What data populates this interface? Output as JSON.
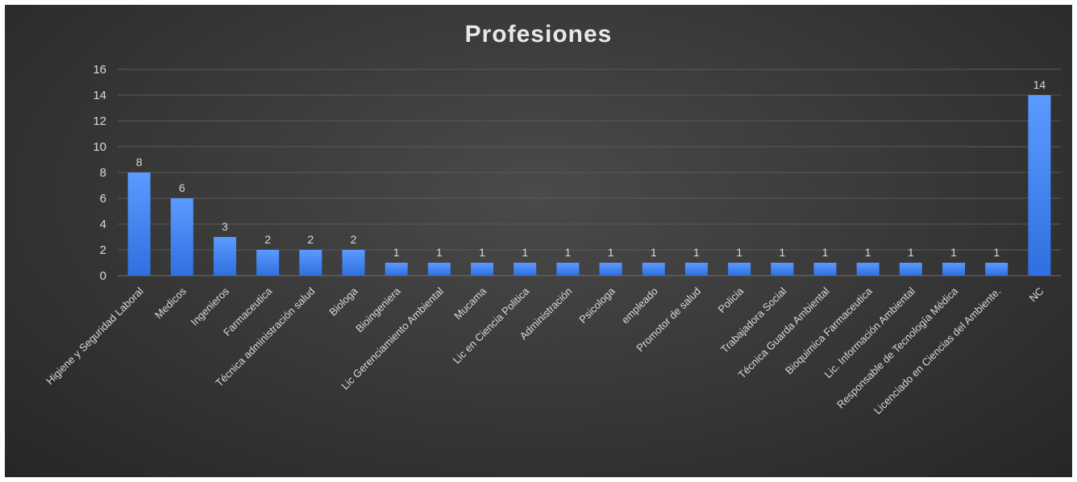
{
  "chart_data": {
    "type": "bar",
    "title": "Profesiones",
    "xlabel": "",
    "ylabel": "",
    "ylim": [
      0,
      16
    ],
    "yticks": [
      0,
      2,
      4,
      6,
      8,
      10,
      12,
      14,
      16
    ],
    "grid": true,
    "legend": "none",
    "colors": {
      "bar_top": "#5b9bff",
      "bar_bottom": "#2f6fe0",
      "background": "#3a3a3a"
    },
    "categories": [
      "Higiene y Seguridad Laboral",
      "Medicos",
      "Ingenieros",
      "Farmaceutica",
      "Técnica administración salud",
      "Biologa",
      "Bioingeniera",
      "Lic Gerenciamiento Ambiental",
      "Mucama",
      "Lic en Ciencia Politica",
      "Administración",
      "Psicologa",
      "empleado",
      "Promotor de salud",
      "Policia",
      "Trabajadora Social",
      "Técnica Guarda Ambiental",
      "Bioquimica Farmaceutica",
      "Lic. Información Ambiental",
      "Responsable de Tecnología Médica",
      "Licenciado en Ciencias del Ambiente.",
      "NC"
    ],
    "values": [
      8,
      6,
      3,
      2,
      2,
      2,
      1,
      1,
      1,
      1,
      1,
      1,
      1,
      1,
      1,
      1,
      1,
      1,
      1,
      1,
      1,
      14
    ]
  }
}
